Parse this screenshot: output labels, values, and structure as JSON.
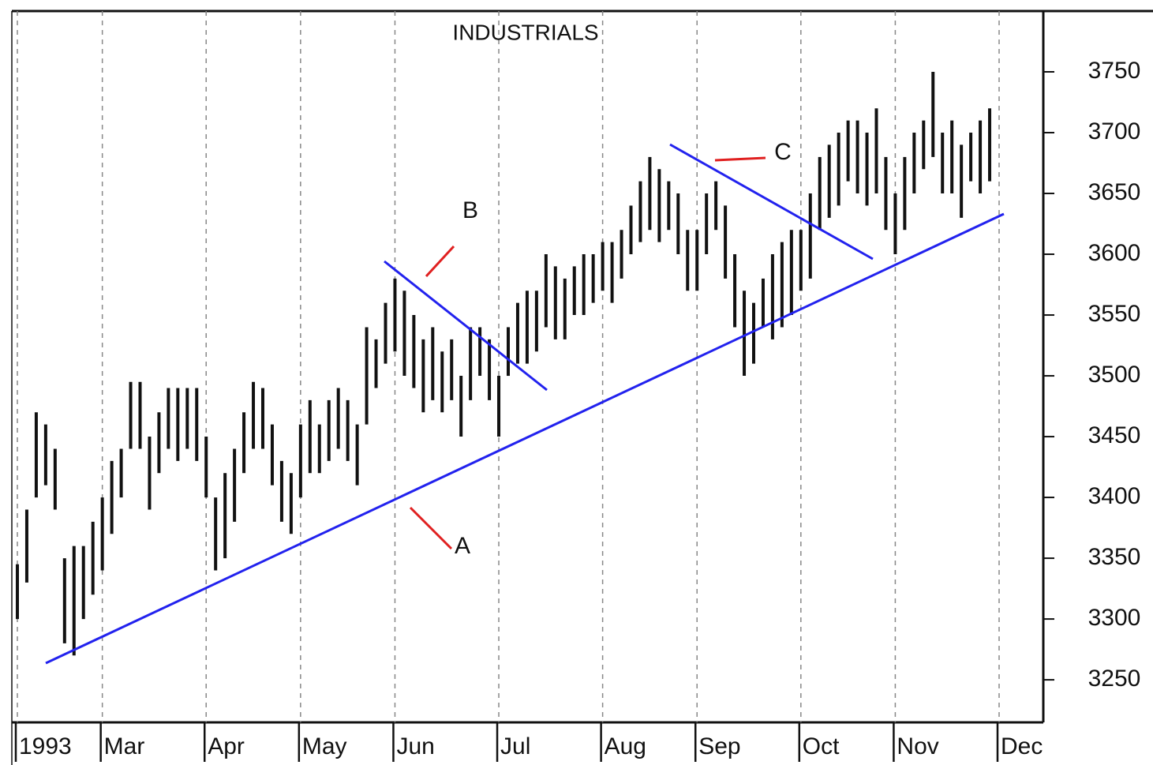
{
  "chart_data": {
    "type": "hilo",
    "title": "INDUSTRIALS",
    "categories": [
      "1993",
      null,
      null,
      null,
      null,
      null,
      null,
      null,
      null,
      "Mar",
      null,
      null,
      null,
      null,
      null,
      null,
      null,
      null,
      null,
      null,
      "Apr",
      null,
      null,
      null,
      null,
      null,
      null,
      null,
      null,
      null,
      "May",
      null,
      null,
      null,
      null,
      null,
      null,
      null,
      null,
      null,
      "Jun",
      null,
      null,
      null,
      null,
      null,
      null,
      null,
      null,
      null,
      null,
      "Jul",
      null,
      null,
      null,
      null,
      null,
      null,
      null,
      null,
      null,
      null,
      "Aug",
      null,
      null,
      null,
      null,
      null,
      null,
      null,
      null,
      null,
      "Sep",
      null,
      null,
      null,
      null,
      null,
      null,
      null,
      null,
      null,
      null,
      "Oct",
      null,
      null,
      null,
      null,
      null,
      null,
      null,
      null,
      null,
      "Nov",
      null,
      null,
      null,
      null,
      null,
      null,
      null,
      null,
      null,
      null,
      "Dec"
    ],
    "high": [
      3345,
      3390,
      3470,
      3460,
      3440,
      3350,
      3360,
      3360,
      3380,
      3400,
      3430,
      3440,
      3495,
      3495,
      3450,
      3470,
      3490,
      3490,
      3490,
      3490,
      3450,
      3400,
      3420,
      3440,
      3470,
      3495,
      3490,
      3460,
      3430,
      3420,
      3460,
      3480,
      3460,
      3480,
      3490,
      3480,
      3460,
      3540,
      3530,
      3560,
      3580,
      3570,
      3550,
      3530,
      3540,
      3520,
      3530,
      3500,
      3540,
      3540,
      3530,
      3500,
      3540,
      3560,
      3570,
      3570,
      3600,
      3590,
      3580,
      3590,
      3600,
      3600,
      3610,
      3610,
      3620,
      3640,
      3660,
      3680,
      3670,
      3660,
      3650,
      3620,
      3620,
      3650,
      3660,
      3640,
      3600,
      3570,
      3560,
      3580,
      3600,
      3610,
      3620,
      3620,
      3650,
      3680,
      3690,
      3700,
      3710,
      3710,
      3700,
      3720,
      3680,
      3650,
      3680,
      3700,
      3710,
      3750,
      3700,
      3710,
      3690,
      3700,
      3710,
      3720,
      null
    ],
    "low": [
      3300,
      3330,
      3400,
      3410,
      3390,
      3280,
      3270,
      3300,
      3320,
      3340,
      3370,
      3400,
      3440,
      3440,
      3390,
      3420,
      3440,
      3430,
      3440,
      3430,
      3400,
      3340,
      3350,
      3380,
      3420,
      3440,
      3440,
      3410,
      3380,
      3370,
      3400,
      3420,
      3420,
      3430,
      3440,
      3430,
      3410,
      3460,
      3490,
      3510,
      3520,
      3500,
      3490,
      3470,
      3480,
      3470,
      3480,
      3450,
      3480,
      3500,
      3480,
      3450,
      3500,
      3510,
      3510,
      3520,
      3540,
      3530,
      3530,
      3550,
      3550,
      3560,
      3570,
      3560,
      3580,
      3600,
      3610,
      3620,
      3610,
      3620,
      3600,
      3570,
      3570,
      3600,
      3620,
      3580,
      3540,
      3500,
      3510,
      3540,
      3530,
      3540,
      3550,
      3570,
      3580,
      3620,
      3630,
      3640,
      3660,
      3650,
      3640,
      3650,
      3620,
      3600,
      3620,
      3650,
      3670,
      3680,
      3650,
      3650,
      3630,
      3660,
      3650,
      3660,
      null
    ],
    "color": "#111111",
    "ylim": [
      3215,
      3800
    ],
    "yticks": [
      3250,
      3300,
      3350,
      3400,
      3450,
      3500,
      3550,
      3600,
      3650,
      3700,
      3750
    ],
    "grid": true,
    "annotations": [
      "A",
      "B",
      "C"
    ]
  }
}
